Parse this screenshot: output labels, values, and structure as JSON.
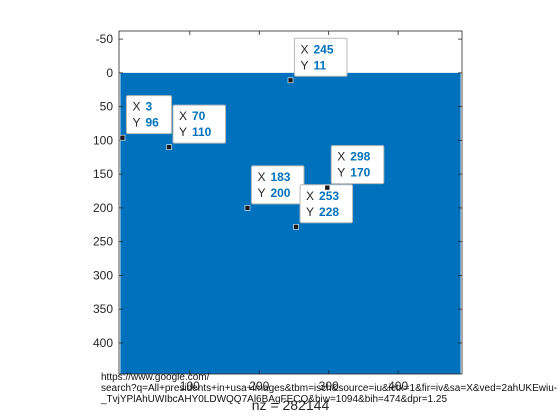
{
  "chart_data": {
    "type": "heatmap",
    "title": "",
    "xlabel": "nz = 282144",
    "ylabel": "",
    "xlim": [
      -2,
      492
    ],
    "ylim": [
      -62,
      446
    ],
    "y_reversed": true,
    "grid": false,
    "matrix_extent": {
      "x": [
        0,
        490
      ],
      "y": [
        0,
        450
      ]
    },
    "fill_color": "#0072bd",
    "yticks": [
      -50,
      0,
      50,
      100,
      150,
      200,
      250,
      300,
      350,
      400
    ],
    "ytick_labels": [
      "-50",
      "0",
      "50",
      "100",
      "150",
      "200",
      "250",
      "300",
      "350",
      "400"
    ],
    "xticks": [
      100,
      200,
      300,
      400
    ],
    "xtick_labels": [
      "100",
      "200",
      "300",
      "400"
    ],
    "datatips": [
      {
        "x": 245,
        "y": 11,
        "x_text": "245",
        "y_text": "11",
        "tip_side": "above-right"
      },
      {
        "x": 3,
        "y": 96,
        "x_text": "3",
        "y_text": "96",
        "tip_side": "above-right"
      },
      {
        "x": 70,
        "y": 110,
        "x_text": "70",
        "y_text": "110",
        "tip_side": "above-right"
      },
      {
        "x": 183,
        "y": 200,
        "x_text": "183",
        "y_text": "200",
        "tip_side": "above-right"
      },
      {
        "x": 253,
        "y": 228,
        "x_text": "253",
        "y_text": "228",
        "tip_side": "above-right"
      },
      {
        "x": 298,
        "y": 170,
        "x_text": "298",
        "y_text": "170",
        "tip_side": "above-right"
      }
    ],
    "datatip_key_x": "X",
    "datatip_key_y": "Y"
  },
  "overlay": {
    "url_lines": [
      "https://www.google.com/",
      "search?q=All+presidents+in+usa+images&tbm=isch&source=iu&ictx=1&fir=iv&sa=X&ved=2ahUKEwiu-",
      "_TvjYPlAhUWIbcAHY0LDWQQ7Al6BAgFECQ&biw=1094&bih=474&dpr=1.25"
    ]
  }
}
